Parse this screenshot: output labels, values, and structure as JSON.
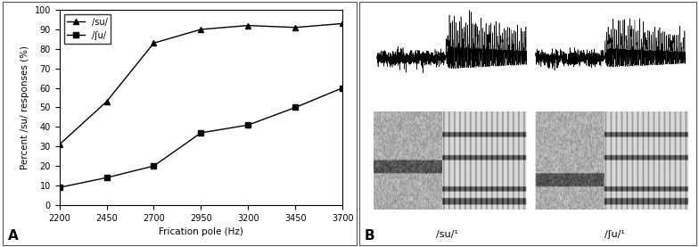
{
  "chart_data": {
    "type": "line",
    "x": [
      2200,
      2450,
      2700,
      2950,
      3200,
      3450,
      3700
    ],
    "xlabel": "Frication pole (Hz)",
    "ylabel": "Percent /su/ responses (%)",
    "series": [
      {
        "name": "/su/",
        "color": "#000000",
        "marker": "triangle",
        "line_style": "solid",
        "values": [
          31,
          53,
          83,
          90,
          92,
          91,
          93
        ]
      },
      {
        "name": "/ʃu/",
        "color": "#000000",
        "marker": "square",
        "line_style": "solid",
        "values": [
          9,
          14,
          20,
          37,
          41,
          50,
          60
        ]
      }
    ],
    "xlim": [
      2200,
      3700
    ],
    "xticks": [
      2200,
      2450,
      2700,
      2950,
      3200,
      3450,
      3700
    ],
    "ylim": [
      0,
      100
    ],
    "yticks": [
      0,
      10,
      20,
      30,
      40,
      50,
      60,
      70,
      80,
      90,
      100
    ],
    "legend": "upper left",
    "grid": false
  },
  "panel_labels": [
    "A",
    "B"
  ],
  "panel_b": {
    "labels": [
      "/su/¹",
      "/ʃu/¹"
    ]
  }
}
